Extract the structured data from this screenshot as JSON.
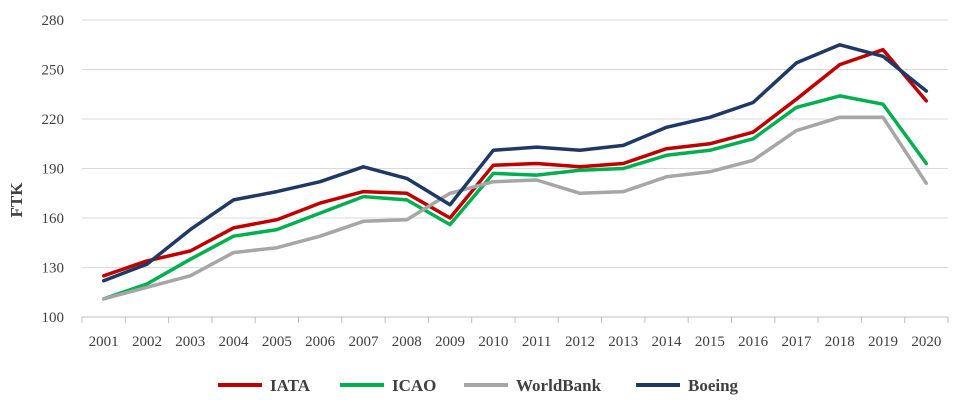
{
  "chart_data": {
    "type": "line",
    "ylabel": "FTK",
    "xlabel": "",
    "ylim": [
      100,
      280
    ],
    "yticks": [
      100,
      130,
      160,
      190,
      220,
      250,
      280
    ],
    "grid": "horizontal",
    "legend_position": "bottom",
    "x": [
      "2001",
      "2002",
      "2003",
      "2004",
      "2005",
      "2006",
      "2007",
      "2008",
      "2009",
      "2010",
      "2011",
      "2012",
      "2013",
      "2014",
      "2015",
      "2016",
      "2017",
      "2018",
      "2019",
      "2020"
    ],
    "series": [
      {
        "name": "IATA",
        "color": "#c00000",
        "values": [
          125,
          134,
          140,
          154,
          159,
          169,
          176,
          175,
          160,
          192,
          193,
          191,
          193,
          202,
          205,
          212,
          232,
          253,
          262,
          231
        ]
      },
      {
        "name": "ICAO",
        "color": "#00b050",
        "values": [
          111,
          120,
          135,
          149,
          153,
          163,
          173,
          171,
          156,
          187,
          186,
          189,
          190,
          198,
          201,
          208,
          227,
          234,
          229,
          193
        ]
      },
      {
        "name": "WorldBank",
        "color": "#a6a6a6",
        "values": [
          111,
          118,
          125,
          139,
          142,
          149,
          158,
          159,
          175,
          182,
          183,
          175,
          176,
          185,
          188,
          195,
          213,
          221,
          221,
          181
        ]
      },
      {
        "name": "Boeing",
        "color": "#1f3864",
        "values": [
          122,
          132,
          153,
          171,
          176,
          182,
          191,
          184,
          168,
          201,
          203,
          201,
          204,
          215,
          221,
          230,
          254,
          265,
          258,
          237
        ]
      }
    ]
  }
}
